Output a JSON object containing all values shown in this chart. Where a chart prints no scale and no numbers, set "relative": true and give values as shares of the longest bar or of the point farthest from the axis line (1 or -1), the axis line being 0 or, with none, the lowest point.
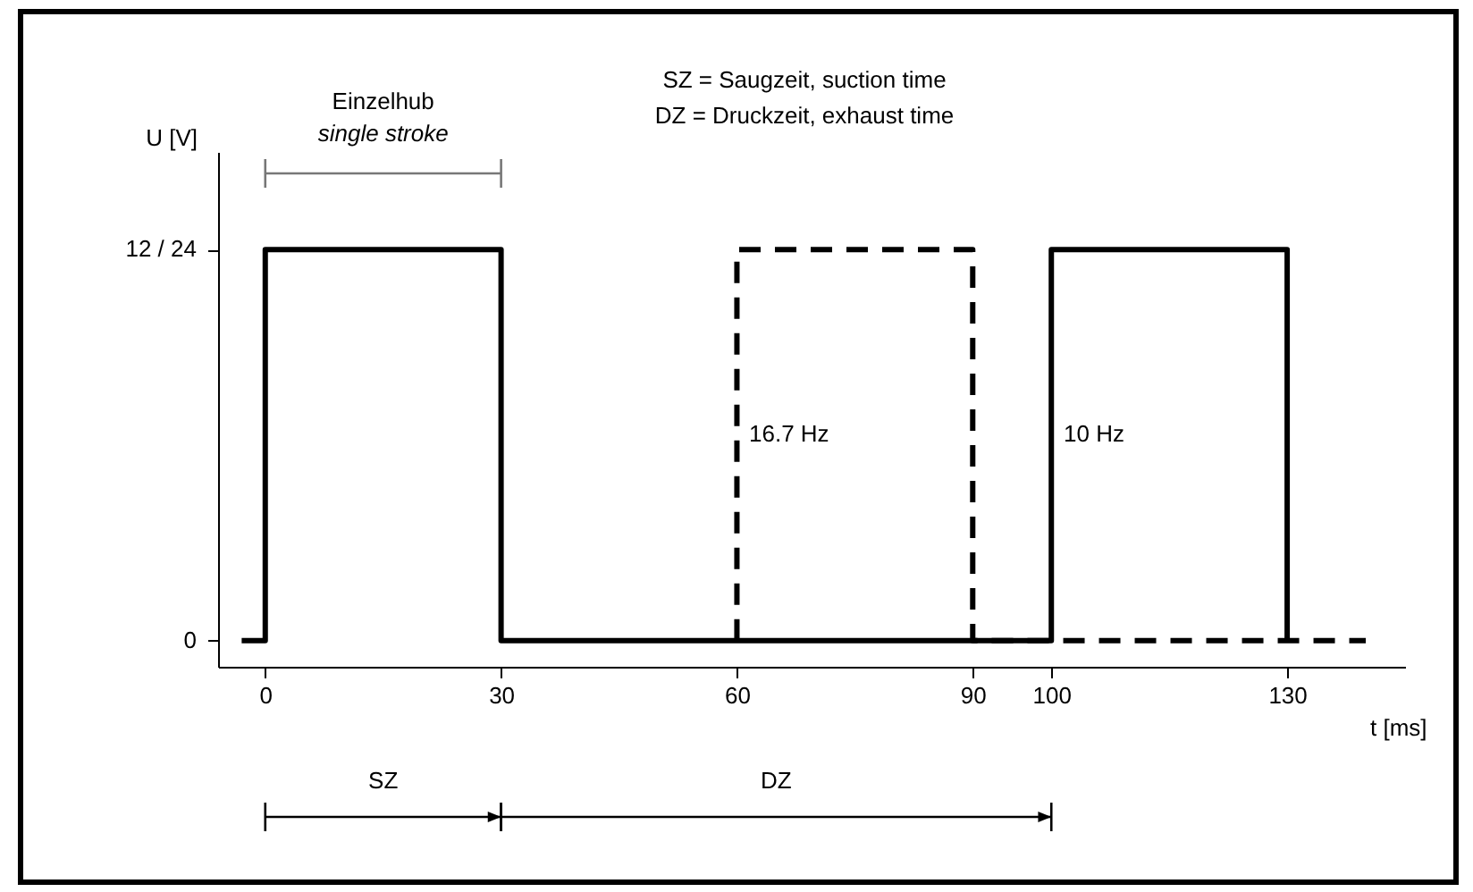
{
  "chart_data": {
    "type": "line",
    "xlabel": "t [ms]",
    "ylabel": "U [V]",
    "xlim": [
      -6,
      145
    ],
    "xticks": [
      0,
      30,
      60,
      90,
      100,
      130
    ],
    "relative": true,
    "grid": false,
    "marker": "none",
    "series": [
      {
        "color": "#000000",
        "line_style": "solid",
        "x": [
          -3,
          0,
          0,
          30,
          30,
          100,
          100,
          130,
          130
        ],
        "values": [
          0,
          0,
          1,
          1,
          0,
          0,
          1,
          1,
          0
        ]
      },
      {
        "color": "#000000",
        "line_style": "dashed",
        "x": [
          60,
          60,
          90,
          90,
          100,
          140
        ],
        "values": [
          0,
          1,
          1,
          0,
          0,
          0
        ]
      }
    ],
    "annotations": [
      "SZ = Saugzeit, suction time",
      "DZ = Druckzeit, exhaust time",
      "Einzelhub",
      "single stroke",
      "16.7 Hz",
      "10 Hz",
      "SZ",
      "DZ",
      "12 / 24",
      "0"
    ]
  }
}
